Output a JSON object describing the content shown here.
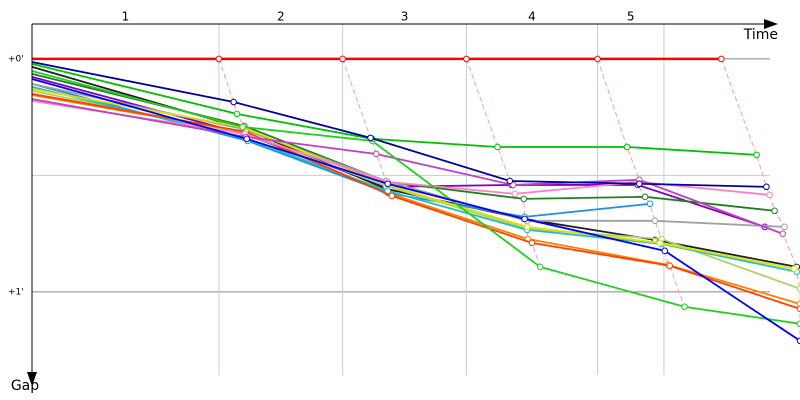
{
  "chart_data": {
    "type": "line",
    "x_label": "Time",
    "y_label": "Gap",
    "laps": [
      "1",
      "2",
      "3",
      "4",
      "5"
    ],
    "xlim": [
      0,
      9.37
    ],
    "ylim": [
      -0.15,
      1.4
    ],
    "xticks": [
      {
        "value": 2.28,
        "label": null
      },
      {
        "value": 3.79,
        "label": null
      },
      {
        "value": 5.3,
        "label": null
      },
      {
        "value": 6.9,
        "label": null
      },
      {
        "value": 7.71,
        "label": null
      }
    ],
    "yticks": [
      {
        "value": 0,
        "label": "+0'"
      },
      {
        "value": 0.5,
        "label": null
      },
      {
        "value": 1,
        "label": "+1'"
      }
    ],
    "series": [
      {
        "color": "#ff0000",
        "x": [
          0,
          2.28,
          3.79,
          5.3,
          6.9,
          8.41
        ],
        "values": [
          0,
          0,
          0,
          0,
          0,
          0
        ]
      },
      {
        "color": "#0000a0",
        "x": [
          0,
          2.46,
          4.13,
          5.83,
          7.41,
          8.96
        ],
        "values": [
          0.013,
          0.185,
          0.339,
          0.524,
          0.536,
          0.549
        ]
      },
      {
        "color": "#0000ff",
        "x": [
          0,
          2.62,
          4.34,
          6.01,
          7.72,
          9.37
        ],
        "values": [
          0.086,
          0.343,
          0.536,
          0.687,
          0.824,
          1.21
        ]
      },
      {
        "color": "#00c000",
        "x": [
          0,
          2.5,
          4.15,
          5.68,
          7.26,
          8.84
        ],
        "values": [
          0.021,
          0.236,
          0.343,
          0.378,
          0.378,
          0.412
        ]
      },
      {
        "color": "#20d020",
        "x": [
          0,
          2.57,
          4.15,
          6.2,
          7.96,
          9.37
        ],
        "values": [
          0.052,
          0.292,
          0.352,
          0.893,
          1.064,
          1.137
        ]
      },
      {
        "color": "#c040c0",
        "x": [
          0,
          2.61,
          4.2,
          5.87,
          7.41,
          9.16
        ],
        "values": [
          0.172,
          0.335,
          0.408,
          0.541,
          0.519,
          0.751
        ]
      },
      {
        "color": "#ff80c0",
        "x": [
          0,
          2.6,
          4.34,
          5.89,
          7.41,
          9.0
        ],
        "values": [
          0.18,
          0.322,
          0.528,
          0.579,
          0.528,
          0.584
        ]
      },
      {
        "color": "#e0e000",
        "x": [
          0,
          2.56,
          4.34,
          6.04,
          7.66,
          9.3
        ],
        "values": [
          0.129,
          0.292,
          0.541,
          0.721,
          0.79,
          0.901
        ]
      },
      {
        "color": "#ff4000",
        "x": [
          0,
          2.61,
          4.39,
          6.1,
          7.78,
          9.37
        ],
        "values": [
          0.15,
          0.313,
          0.588,
          0.79,
          0.888,
          1.073
        ]
      },
      {
        "color": "#a0a0a0",
        "x": [
          0,
          2.56,
          4.32,
          6.04,
          7.6,
          9.18
        ],
        "values": [
          0.107,
          0.3,
          0.524,
          0.695,
          0.695,
          0.721
        ]
      },
      {
        "color": "#208020",
        "x": [
          0,
          2.59,
          4.34,
          6.0,
          7.48,
          9.06
        ],
        "values": [
          0.064,
          0.288,
          0.528,
          0.601,
          0.592,
          0.652
        ]
      },
      {
        "color": "#20c0c0",
        "x": [
          0,
          2.62,
          4.34,
          6.04,
          7.68,
          9.33
        ],
        "values": [
          0.12,
          0.343,
          0.567,
          0.734,
          0.794,
          0.914
        ]
      },
      {
        "color": "#b0d070",
        "x": [
          0,
          2.6,
          4.32,
          6.05,
          7.68,
          9.37
        ],
        "values": [
          0.137,
          0.322,
          0.545,
          0.73,
          0.773,
          0.987
        ]
      },
      {
        "color": "#2090e0",
        "x": [
          0,
          2.63,
          4.34,
          6.01,
          7.54
        ],
        "values": [
          0.107,
          0.352,
          0.575,
          0.678,
          0.622
        ]
      },
      {
        "color": "#202020",
        "x": [
          0,
          2.6,
          4.32,
          6.01,
          7.6,
          9.33
        ],
        "values": [
          0.034,
          0.3,
          0.558,
          0.687,
          0.777,
          0.893
        ]
      },
      {
        "color": "#8000c0",
        "x": [
          0,
          2.59,
          4.32,
          5.85,
          7.39,
          8.94
        ],
        "values": [
          0.077,
          0.322,
          0.549,
          0.541,
          0.541,
          0.721
        ]
      },
      {
        "color": "#ff8000",
        "x": [
          0,
          2.57,
          4.37,
          6.05,
          7.76,
          9.37
        ],
        "values": [
          0.155,
          0.313,
          0.579,
          0.773,
          0.884,
          1.052
        ]
      }
    ]
  }
}
